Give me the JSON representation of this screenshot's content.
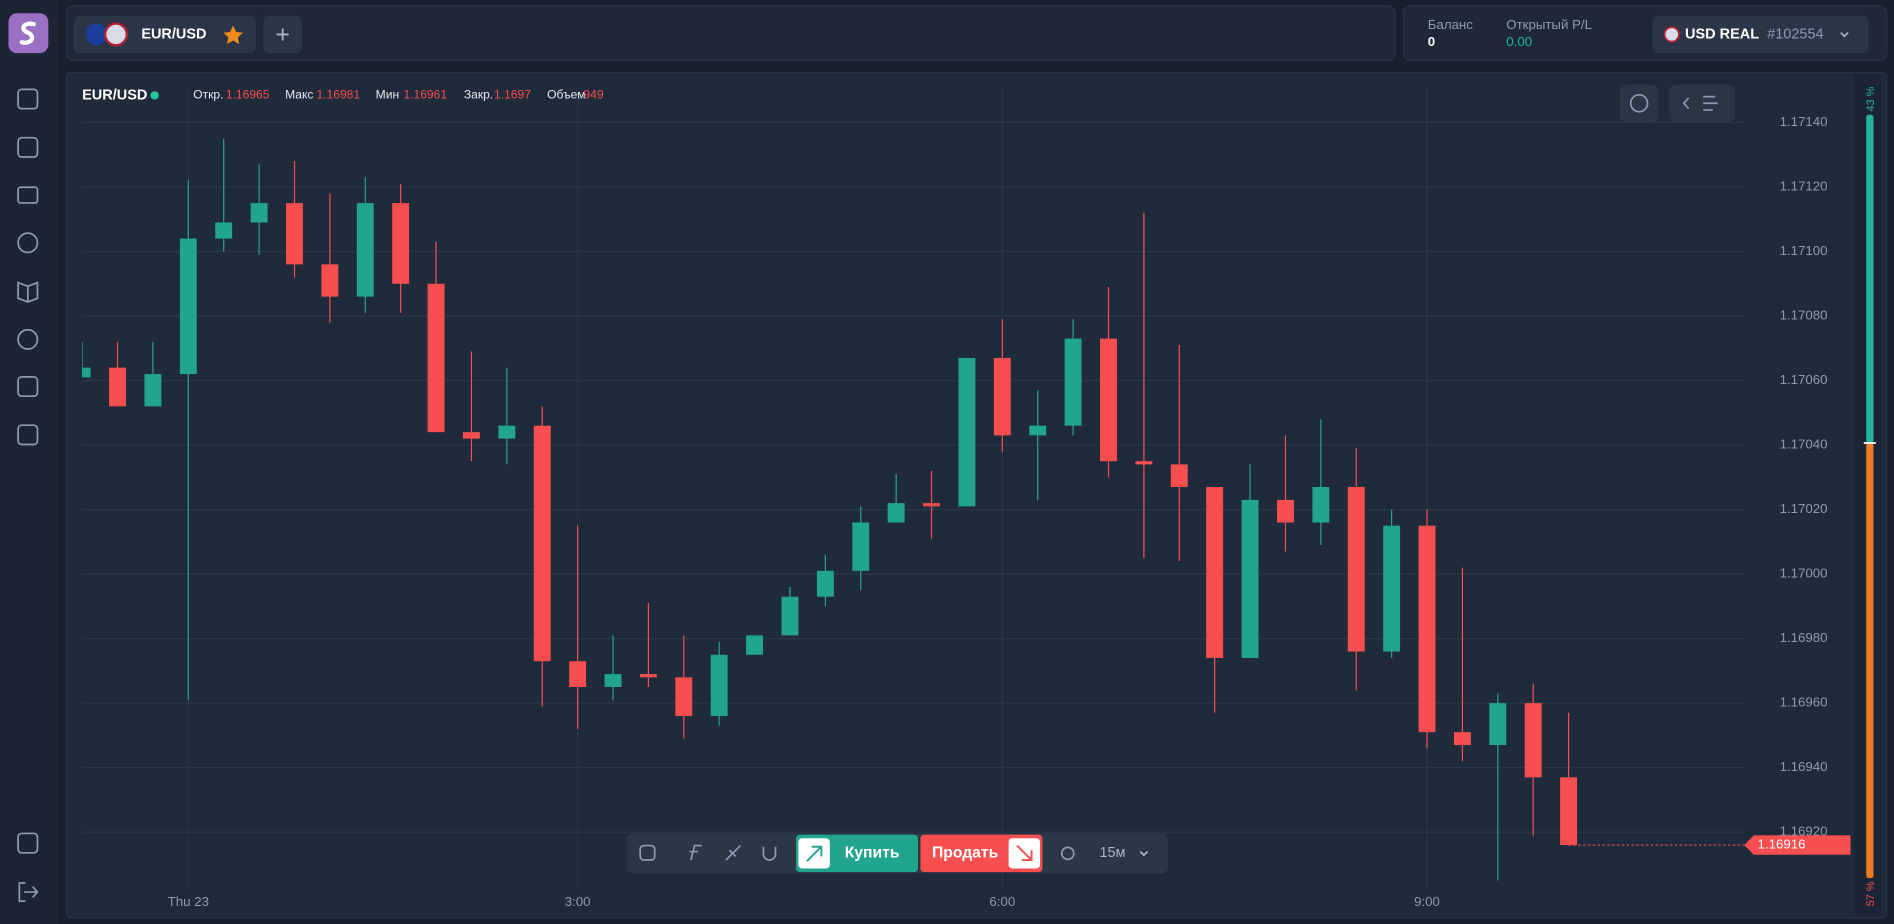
{
  "tabs": [
    {
      "label": "EUR/USD"
    }
  ],
  "account": {
    "balance_label": "Баланс",
    "balance": "0",
    "pl_label": "Открытый P/L",
    "pl": "0.00",
    "currency": "USD REAL",
    "account_id": "#102554"
  },
  "legend": {
    "symbol": "EUR/USD",
    "open_label": "Откр.",
    "open": "1.16965",
    "high_label": "Макс",
    "high": "1.16981",
    "low_label": "Мин",
    "low": "1.16961",
    "close_label": "Закр.",
    "close": "1.1697",
    "volume_label": "Объем",
    "volume": "949"
  },
  "toolbar": {
    "buy": "Купить",
    "sell": "Продать",
    "timeframe": "15м"
  },
  "sentiment": [
    {
      "value": 43,
      "label": "43 %",
      "color": "#22b59b"
    },
    {
      "value": 57,
      "label": "57 %",
      "color": "#f07a23"
    }
  ],
  "chart_data": {
    "type": "candlestick",
    "up_color": "#22a58e",
    "down_color": "#f74f4f",
    "grid": true,
    "categories": [
      null,
      null,
      null,
      "Thu 23",
      null,
      null,
      null,
      null,
      null,
      null,
      null,
      null,
      null,
      null,
      "3:00",
      null,
      null,
      null,
      null,
      null,
      null,
      null,
      null,
      null,
      null,
      null,
      "6:00",
      null,
      null,
      null,
      null,
      null,
      null,
      null,
      null,
      null,
      null,
      null,
      "9:00",
      null,
      null,
      null,
      null
    ],
    "open": [
      1.17061,
      1.17064,
      1.17052,
      1.17062,
      1.17104,
      1.17109,
      1.17115,
      1.17096,
      1.17086,
      1.17115,
      1.1709,
      1.17044,
      1.17042,
      1.17046,
      1.16973,
      1.16965,
      1.16969,
      1.16968,
      1.16956,
      1.16975,
      1.16981,
      1.16993,
      1.17001,
      1.17016,
      1.17022,
      1.17021,
      1.17067,
      1.17043,
      1.17046,
      1.17073,
      1.17035,
      1.17034,
      1.17027,
      1.16974,
      1.17023,
      1.17016,
      1.17027,
      1.16976,
      1.17015,
      1.16951,
      1.16947,
      1.1696,
      1.16937
    ],
    "high": [
      1.17072,
      1.17072,
      1.17072,
      1.17122,
      1.17135,
      1.17127,
      1.17128,
      1.17118,
      1.17123,
      1.17121,
      1.17103,
      1.17069,
      1.17064,
      1.17052,
      1.17015,
      1.16981,
      1.16991,
      1.16981,
      1.16979,
      1.16981,
      1.16996,
      1.17006,
      1.17021,
      1.17031,
      1.17032,
      1.17067,
      1.17079,
      1.17057,
      1.17079,
      1.17089,
      1.17112,
      1.17071,
      1.17027,
      1.17034,
      1.17043,
      1.17048,
      1.17039,
      1.1702,
      1.1702,
      1.17002,
      1.16963,
      1.16966,
      1.16957
    ],
    "low": [
      1.17061,
      1.17052,
      1.17052,
      1.16961,
      1.171,
      1.17099,
      1.17092,
      1.17078,
      1.17081,
      1.17081,
      1.17044,
      1.17035,
      1.17034,
      1.16959,
      1.16952,
      1.16961,
      1.16965,
      1.16949,
      1.16953,
      1.16975,
      1.16981,
      1.1699,
      1.16995,
      1.17016,
      1.17011,
      1.17021,
      1.17038,
      1.17023,
      1.17043,
      1.1703,
      1.17005,
      1.17004,
      1.16957,
      1.16974,
      1.17007,
      1.17009,
      1.16964,
      1.16974,
      1.16946,
      1.16942,
      1.16905,
      1.16919,
      1.16916
    ],
    "close": [
      1.17064,
      1.17052,
      1.17062,
      1.17104,
      1.17109,
      1.17115,
      1.17096,
      1.17086,
      1.17115,
      1.1709,
      1.17044,
      1.17042,
      1.17046,
      1.16973,
      1.16965,
      1.16969,
      1.16968,
      1.16956,
      1.16975,
      1.16981,
      1.16993,
      1.17001,
      1.17016,
      1.17022,
      1.17021,
      1.17067,
      1.17043,
      1.17046,
      1.17073,
      1.17035,
      1.17034,
      1.17027,
      1.16974,
      1.17023,
      1.17016,
      1.17027,
      1.16976,
      1.17015,
      1.16951,
      1.16947,
      1.1696,
      1.16937,
      1.16916
    ],
    "last_price": 1.16916,
    "ylim": [
      1.16902,
      1.17151
    ],
    "yticks": [
      {
        "value": 1.1692,
        "label": "1.16920"
      },
      {
        "value": 1.1694,
        "label": "1.16940"
      },
      {
        "value": 1.1696,
        "label": "1.16960"
      },
      {
        "value": 1.1698,
        "label": "1.16980"
      },
      {
        "value": 1.17,
        "label": "1.17000"
      },
      {
        "value": 1.1702,
        "label": "1.17020"
      },
      {
        "value": 1.1704,
        "label": "1.17040"
      },
      {
        "value": 1.1706,
        "label": "1.17060"
      },
      {
        "value": 1.1708,
        "label": "1.17080"
      },
      {
        "value": 1.171,
        "label": "1.17100"
      },
      {
        "value": 1.1712,
        "label": "1.17120"
      },
      {
        "value": 1.1714,
        "label": "1.17140"
      }
    ]
  }
}
